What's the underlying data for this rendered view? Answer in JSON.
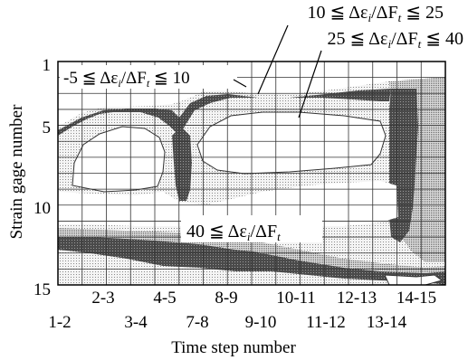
{
  "chart_data": {
    "type": "heatmap",
    "title": "",
    "xlabel": "Time step number",
    "ylabel": "Strain gage number",
    "x_ticks_upper": [
      "2-3",
      "4-5",
      "8-9",
      "10-11",
      "12-13",
      "14-15"
    ],
    "x_ticks_lower": [
      "1-2",
      "3-4",
      "7-8",
      "9-10",
      "11-12",
      "13-14"
    ],
    "y_ticks": [
      "1",
      "5",
      "10",
      "15"
    ],
    "grid": true,
    "x_range": [
      1,
      14
    ],
    "y_range": [
      1,
      15
    ],
    "legend": [
      {
        "label": "-5 ≦ Δεi/ΔFt ≦ 10",
        "fill": "#ffffff"
      },
      {
        "label": "10 ≦ Δεi/ΔFt ≦ 25",
        "fill": "#e4e4e4"
      },
      {
        "label": "25 ≦ Δεi/ΔFt ≦ 40",
        "fill": "#a9a9a9"
      },
      {
        "label": "40 ≦ Δεi/ΔFt",
        "fill": "#555555"
      }
    ],
    "annotations": [
      {
        "id": "band1",
        "text_prefix": "-5 ≦ Δε",
        "sub1": "i",
        "mid": "/ΔF",
        "sub2": "t",
        "suffix": " ≦ 10"
      },
      {
        "id": "band2",
        "text_prefix": "10 ≦ Δε",
        "sub1": "i",
        "mid": "/ΔF",
        "sub2": "t",
        "suffix": " ≦ 25"
      },
      {
        "id": "band3",
        "text_prefix": "25 ≦ Δε",
        "sub1": "i",
        "mid": "/ΔF",
        "sub2": "t",
        "suffix": " ≦ 40"
      },
      {
        "id": "band4",
        "text_prefix": "40 ≦ Δε",
        "sub1": "i",
        "mid": "/ΔF",
        "sub2": "t",
        "suffix": ""
      }
    ]
  }
}
